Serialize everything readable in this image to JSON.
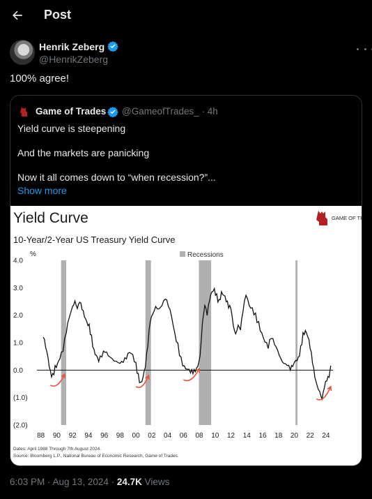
{
  "header": {
    "title": "Post"
  },
  "author": {
    "name": "Henrik Zeberg",
    "handle": "@HenrikZeberg"
  },
  "tweet": {
    "text": "100% agree!"
  },
  "quote": {
    "name": "Game of Trades",
    "handle": "@GameofTrades_",
    "time": "· 4h",
    "lines": [
      "Yield curve is steepening",
      "And the markets are panicking",
      "Now it all comes down to “when recession?”..."
    ],
    "show_more": "Show more"
  },
  "chart_data": {
    "type": "line",
    "title": "Yield Curve",
    "subtitle": "10-Year/2-Year US Treasury Yield Curve",
    "ylabel": "%",
    "legend": "Recessions",
    "logo": "GAME OF TRADES",
    "ylim": [
      -2.0,
      4.0
    ],
    "y_ticks": [
      "4.0",
      "3.0",
      "2.0",
      "1.0",
      "0.0",
      "(1.0)",
      "(2.0)"
    ],
    "x_ticks": [
      "88",
      "90",
      "92",
      "94",
      "96",
      "98",
      "00",
      "02",
      "04",
      "06",
      "08",
      "10",
      "12",
      "14",
      "16",
      "18",
      "20",
      "22",
      "24"
    ],
    "recessions": [
      [
        1990.55,
        1991.2
      ],
      [
        2001.2,
        2001.9
      ],
      [
        2007.95,
        2009.5
      ],
      [
        2020.15,
        2020.4
      ]
    ],
    "series": [
      {
        "x": [
          1988.3,
          1988.6,
          1988.9,
          1989.2,
          1989.5,
          1989.8,
          1990.1,
          1990.4,
          1990.8,
          1991.2,
          1991.6,
          1992.0,
          1992.3,
          1992.6,
          1992.9,
          1993.2,
          1993.5,
          1993.8,
          1994.1,
          1994.4,
          1994.7,
          1995.0,
          1995.3,
          1995.7,
          1996.1,
          1996.5,
          1997.0,
          1997.5,
          1998.0,
          1998.4,
          1998.8,
          1999.2,
          1999.6,
          2000.0,
          2000.3,
          2000.6,
          2000.9,
          2001.2,
          2001.5,
          2001.8,
          2002.1,
          2002.5,
          2002.9,
          2003.3,
          2003.7,
          2004.1,
          2004.5,
          2004.9,
          2005.3,
          2005.7,
          2006.1,
          2006.5,
          2006.9,
          2007.2,
          2007.5,
          2007.8,
          2008.1,
          2008.4,
          2008.7,
          2009.0,
          2009.3,
          2009.6,
          2009.9,
          2010.2,
          2010.5,
          2010.8,
          2011.1,
          2011.4,
          2011.7,
          2012.0,
          2012.3,
          2012.6,
          2012.9,
          2013.2,
          2013.5,
          2013.9,
          2014.3,
          2014.7,
          2015.1,
          2015.5,
          2015.9,
          2016.3,
          2016.7,
          2017.1,
          2017.5,
          2017.9,
          2018.3,
          2018.7,
          2019.1,
          2019.5,
          2019.8,
          2020.2,
          2020.5,
          2020.8,
          2021.1,
          2021.4,
          2021.7,
          2022.0,
          2022.3,
          2022.6,
          2022.9,
          2023.2,
          2023.5,
          2023.8,
          2024.1,
          2024.4,
          2024.6
        ],
        "values": [
          1.2,
          0.8,
          0.4,
          -0.1,
          -0.2,
          0.1,
          0.2,
          0.4,
          0.7,
          1.4,
          2.0,
          2.4,
          2.6,
          2.3,
          2.5,
          2.2,
          1.9,
          1.7,
          1.6,
          1.2,
          0.7,
          0.5,
          0.3,
          0.5,
          0.7,
          0.6,
          0.5,
          0.4,
          0.3,
          0.3,
          0.4,
          0.6,
          0.5,
          0.2,
          -0.2,
          -0.5,
          -0.3,
          0.1,
          0.9,
          1.8,
          2.1,
          2.4,
          2.3,
          2.4,
          2.6,
          2.3,
          1.9,
          1.3,
          0.9,
          0.4,
          0.1,
          0.0,
          -0.1,
          -0.1,
          0.0,
          0.2,
          0.6,
          1.8,
          2.4,
          2.0,
          2.5,
          2.8,
          2.9,
          2.7,
          2.5,
          2.8,
          2.7,
          2.5,
          2.3,
          2.3,
          1.7,
          1.4,
          1.7,
          1.5,
          2.1,
          2.7,
          2.3,
          2.2,
          2.0,
          1.7,
          1.3,
          1.0,
          0.8,
          1.2,
          1.0,
          0.8,
          0.5,
          0.3,
          0.2,
          0.0,
          0.1,
          0.3,
          0.4,
          0.8,
          1.3,
          1.4,
          1.2,
          0.8,
          0.3,
          -0.2,
          -0.5,
          -0.7,
          -1.0,
          -0.6,
          -0.4,
          -0.3,
          0.1
        ]
      }
    ],
    "footnote_1": "Dates: April 1988 Through 7th August 2024.",
    "footnote_2": "Source: Bloomberg L.P., National Bureau of Economic Research, Game of Trades."
  },
  "meta": {
    "time": "6:03 PM · Aug 13, 2024 · ",
    "views_count": "24.7K",
    "views_label": " Views"
  },
  "colors": {
    "accent": "#1d9bf0",
    "arrow": "#e8543a"
  }
}
